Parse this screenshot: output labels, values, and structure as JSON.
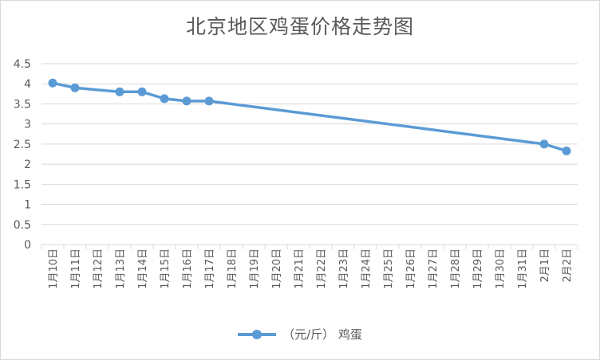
{
  "chart_data": {
    "type": "line",
    "title": "北京地区鸡蛋价格走势图",
    "categories": [
      "1月10日",
      "1月11日",
      "1月12日",
      "1月13日",
      "1月14日",
      "1月15日",
      "1月16日",
      "1月17日",
      "1月18日",
      "1月19日",
      "1月20日",
      "1月21日",
      "1月22日",
      "1月23日",
      "1月24日",
      "1月25日",
      "1月26日",
      "1月27日",
      "1月28日",
      "1月29日",
      "1月30日",
      "1月31日",
      "2月1日",
      "2月2日"
    ],
    "yticks": [
      "0",
      "0.5",
      "1",
      "1.5",
      "2",
      "2.5",
      "3",
      "3.5",
      "4",
      "4.5"
    ],
    "ylim": [
      0,
      4.5
    ],
    "series": [
      {
        "name": "（元/斤） 鸡蛋",
        "color": "#5b9bd5",
        "points": [
          {
            "x": "1月10日",
            "y": 4.02
          },
          {
            "x": "1月11日",
            "y": 3.9
          },
          {
            "x": "1月13日",
            "y": 3.8
          },
          {
            "x": "1月14日",
            "y": 3.8
          },
          {
            "x": "1月15日",
            "y": 3.63
          },
          {
            "x": "1月16日",
            "y": 3.57
          },
          {
            "x": "1月17日",
            "y": 3.57
          },
          {
            "x": "2月1日",
            "y": 2.5
          },
          {
            "x": "2月2日",
            "y": 2.33
          }
        ]
      }
    ],
    "grid": true,
    "legend_position": "bottom"
  }
}
